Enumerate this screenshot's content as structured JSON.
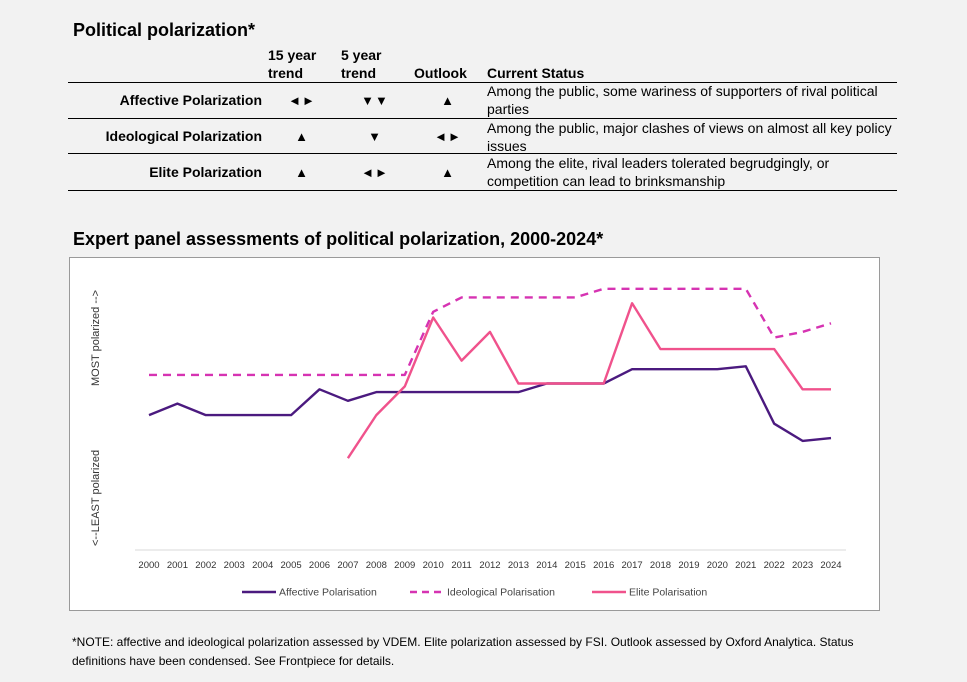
{
  "table": {
    "title": "Political polarization*",
    "headers": {
      "trend15": [
        "15 year",
        "trend"
      ],
      "trend5": [
        "5 year",
        "trend"
      ],
      "outlook": "Outlook",
      "status": "Current Status"
    },
    "rows": [
      {
        "label": "Affective Polarization",
        "trend15": "◄►",
        "trend5": "▼▼",
        "outlook": "▲",
        "status": "Among the public, some wariness of supporters of rival political parties"
      },
      {
        "label": "Ideological Polarization",
        "trend15": "▲",
        "trend5": "▼",
        "outlook": "◄►",
        "status": "Among the public, major clashes of views on almost all key policy issues"
      },
      {
        "label": "Elite Polarization",
        "trend15": "▲",
        "trend5": "◄►",
        "outlook": "▲",
        "status": "Among the elite, rival leaders tolerated begrudgingly, or competition can lead to brinksmanship"
      }
    ]
  },
  "chart_title": "Expert panel assessments of political polarization, 2000-2024*",
  "chart_data": {
    "type": "line",
    "x": [
      "2000",
      "2001",
      "2002",
      "2003",
      "2004",
      "2005",
      "2006",
      "2007",
      "2008",
      "2009",
      "2010",
      "2011",
      "2012",
      "2013",
      "2014",
      "2015",
      "2016",
      "2017",
      "2018",
      "2019",
      "2020",
      "2021",
      "2022",
      "2023",
      "2024"
    ],
    "ylabel_top": "MOST polarized -->",
    "ylabel_bottom": "<--LEAST polarized",
    "ylim": [
      0,
      100
    ],
    "grid": false,
    "legend_position": "bottom",
    "series": [
      {
        "name": "Affective Polarisation",
        "color": "#4b1a7f",
        "dash": "solid",
        "values": [
          47,
          51,
          47,
          47,
          47,
          47,
          56,
          52,
          55,
          55,
          55,
          55,
          55,
          55,
          58,
          58,
          58,
          63,
          63,
          63,
          63,
          64,
          44,
          38,
          39
        ]
      },
      {
        "name": "Ideological Polarisation",
        "color": "#d633b2",
        "dash": "dashed",
        "values": [
          61,
          61,
          61,
          61,
          61,
          61,
          61,
          61,
          61,
          61,
          83,
          88,
          88,
          88,
          88,
          88,
          91,
          91,
          91,
          91,
          91,
          91,
          74,
          76,
          79
        ]
      },
      {
        "name": "Elite Polarisation",
        "color": "#f0528c",
        "dash": "solid",
        "values": [
          null,
          null,
          null,
          null,
          null,
          null,
          null,
          32,
          47,
          57,
          81,
          66,
          76,
          58,
          58,
          58,
          58,
          86,
          70,
          70,
          70,
          70,
          70,
          56,
          56
        ]
      }
    ]
  },
  "note": "*NOTE: affective and ideological polarization assessed by VDEM. Elite polarization assessed by FSI. Outlook assessed by Oxford Analytica. Status definitions have been condensed. See Frontpiece for details."
}
